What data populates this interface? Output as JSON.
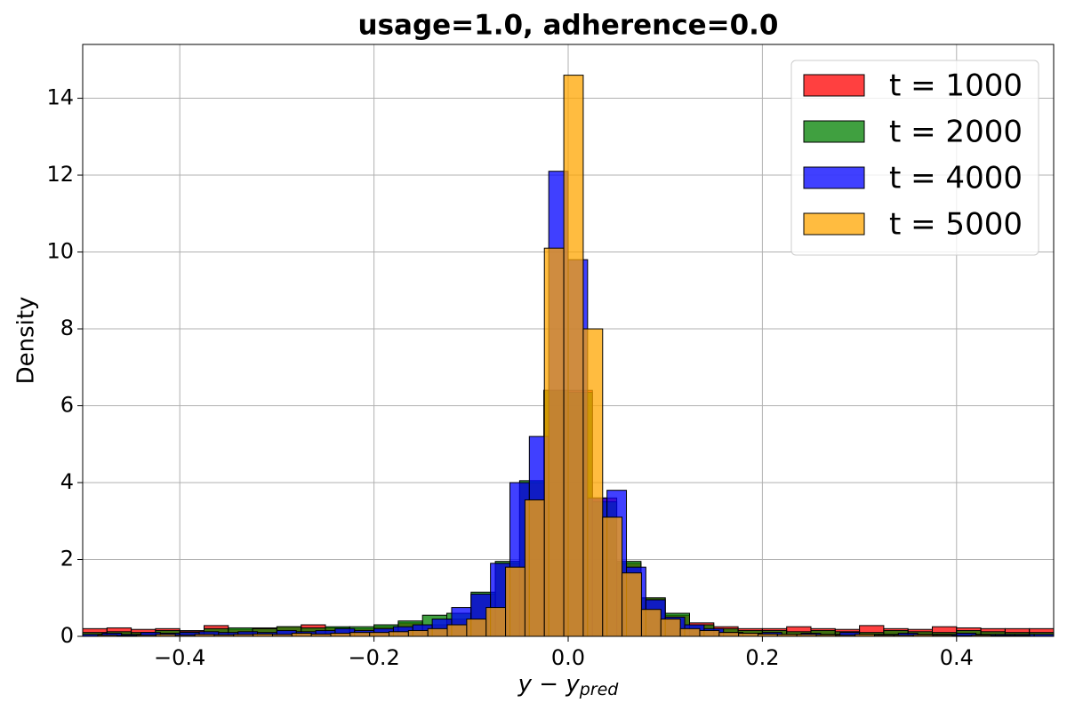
{
  "chart_data": {
    "type": "histogram",
    "title": "usage=1.0, adherence=0.0",
    "xlabel": {
      "text": "y − y",
      "subscript": "pred"
    },
    "ylabel": "Density",
    "xlim": [
      -0.5,
      0.5
    ],
    "ylim": [
      0,
      15.4
    ],
    "xticks": [
      {
        "value": -0.4,
        "label": "−0.4"
      },
      {
        "value": -0.2,
        "label": "−0.2"
      },
      {
        "value": 0,
        "label": "0.0"
      },
      {
        "value": 0.2,
        "label": "0.2"
      },
      {
        "value": 0.4,
        "label": "0.4"
      }
    ],
    "yticks": [
      0,
      2,
      4,
      6,
      8,
      10,
      12,
      14
    ],
    "grid": true,
    "legend": "upper right",
    "series": [
      {
        "name": "t = 1000",
        "color": "#ff0000",
        "bins": [
          -0.5,
          -0.475,
          -0.45,
          -0.425,
          -0.4,
          -0.375,
          -0.35,
          -0.325,
          -0.3,
          -0.275,
          -0.25,
          -0.225,
          -0.2,
          -0.175,
          -0.15,
          -0.125,
          -0.1,
          -0.075,
          -0.05,
          -0.025,
          0,
          0.025,
          0.05,
          0.075,
          0.1,
          0.125,
          0.15,
          0.175,
          0.2,
          0.225,
          0.25,
          0.275,
          0.3,
          0.325,
          0.35,
          0.375,
          0.4,
          0.425,
          0.45,
          0.475,
          0.5
        ],
        "values": [
          0.2,
          0.22,
          0.18,
          0.2,
          0.15,
          0.28,
          0.18,
          0.22,
          0.25,
          0.3,
          0.22,
          0.2,
          0.25,
          0.35,
          0.3,
          0.45,
          1.1,
          1.9,
          4.0,
          6.4,
          6.4,
          3.6,
          1.9,
          1.0,
          0.55,
          0.35,
          0.25,
          0.2,
          0.2,
          0.25,
          0.2,
          0.18,
          0.28,
          0.2,
          0.18,
          0.25,
          0.22,
          0.2,
          0.2,
          0.2
        ]
      },
      {
        "name": "t = 2000",
        "color": "#008000",
        "bins": [
          -0.5,
          -0.475,
          -0.45,
          -0.425,
          -0.4,
          -0.375,
          -0.35,
          -0.325,
          -0.3,
          -0.275,
          -0.25,
          -0.225,
          -0.2,
          -0.175,
          -0.15,
          -0.125,
          -0.1,
          -0.075,
          -0.05,
          -0.025,
          0,
          0.025,
          0.05,
          0.075,
          0.1,
          0.125,
          0.15,
          0.175,
          0.2,
          0.225,
          0.25,
          0.275,
          0.3,
          0.325,
          0.35,
          0.375,
          0.4,
          0.425,
          0.45,
          0.475,
          0.5
        ],
        "values": [
          0.1,
          0.12,
          0.1,
          0.15,
          0.12,
          0.2,
          0.22,
          0.2,
          0.25,
          0.22,
          0.25,
          0.25,
          0.3,
          0.4,
          0.55,
          0.6,
          1.15,
          1.95,
          4.05,
          6.4,
          6.35,
          3.5,
          1.95,
          1.0,
          0.6,
          0.3,
          0.2,
          0.15,
          0.15,
          0.12,
          0.15,
          0.12,
          0.1,
          0.15,
          0.12,
          0.1,
          0.15,
          0.12,
          0.1,
          0.1
        ]
      },
      {
        "name": "t = 4000",
        "color": "#0000ff",
        "bins": [
          -0.5,
          -0.48,
          -0.46,
          -0.44,
          -0.42,
          -0.4,
          -0.38,
          -0.36,
          -0.34,
          -0.32,
          -0.3,
          -0.28,
          -0.26,
          -0.24,
          -0.22,
          -0.2,
          -0.18,
          -0.16,
          -0.14,
          -0.12,
          -0.1,
          -0.08,
          -0.06,
          -0.04,
          -0.02,
          0,
          0.02,
          0.04,
          0.06,
          0.08,
          0.1,
          0.12,
          0.14,
          0.16,
          0.18,
          0.2,
          0.22,
          0.24,
          0.26,
          0.28,
          0.3,
          0.32,
          0.34,
          0.36,
          0.38,
          0.4,
          0.42,
          0.44,
          0.46,
          0.48,
          0.5
        ],
        "values": [
          0.05,
          0.08,
          0.05,
          0.1,
          0.08,
          0.1,
          0.12,
          0.1,
          0.12,
          0.1,
          0.15,
          0.12,
          0.15,
          0.2,
          0.15,
          0.2,
          0.25,
          0.3,
          0.45,
          0.75,
          1.1,
          1.9,
          4.0,
          5.2,
          12.1,
          9.8,
          3.6,
          3.8,
          1.8,
          0.95,
          0.5,
          0.3,
          0.2,
          0.1,
          0.08,
          0.1,
          0.05,
          0.08,
          0.05,
          0.1,
          0.05,
          0.05,
          0.08,
          0.05,
          0.05,
          0.08,
          0.05,
          0.05,
          0.05,
          0.05
        ]
      },
      {
        "name": "t = 5000",
        "color": "#ffa500",
        "bins": [
          -0.4845,
          -0.4645,
          -0.4445,
          -0.4245,
          -0.4045,
          -0.3845,
          -0.3645,
          -0.3445,
          -0.3245,
          -0.3045,
          -0.2845,
          -0.2645,
          -0.2445,
          -0.2245,
          -0.2045,
          -0.1845,
          -0.1645,
          -0.1445,
          -0.1245,
          -0.1045,
          -0.0845,
          -0.0645,
          -0.0445,
          -0.0245,
          -0.0045,
          0.0155,
          0.0355,
          0.0555,
          0.0755,
          0.0955,
          0.1155,
          0.1355,
          0.1555,
          0.1755,
          0.1955,
          0.2155,
          0.2355,
          0.2555,
          0.2755,
          0.2955,
          0.3155,
          0.3355,
          0.3555,
          0.3755,
          0.3955,
          0.4155,
          0.4355,
          0.4555,
          0.4755
        ],
        "values": [
          0.03,
          0.02,
          0.03,
          0.05,
          0.03,
          0.05,
          0.04,
          0.05,
          0.06,
          0.05,
          0.08,
          0.06,
          0.08,
          0.1,
          0.1,
          0.12,
          0.15,
          0.2,
          0.3,
          0.45,
          0.75,
          1.8,
          3.55,
          10.1,
          14.6,
          8.0,
          3.1,
          1.65,
          0.7,
          0.45,
          0.2,
          0.15,
          0.1,
          0.08,
          0.06,
          0.05,
          0.05,
          0.04,
          0.03,
          0.05,
          0.03,
          0.03,
          0.04,
          0.03,
          0.02,
          0.03,
          0.02,
          0.02
        ]
      }
    ]
  }
}
